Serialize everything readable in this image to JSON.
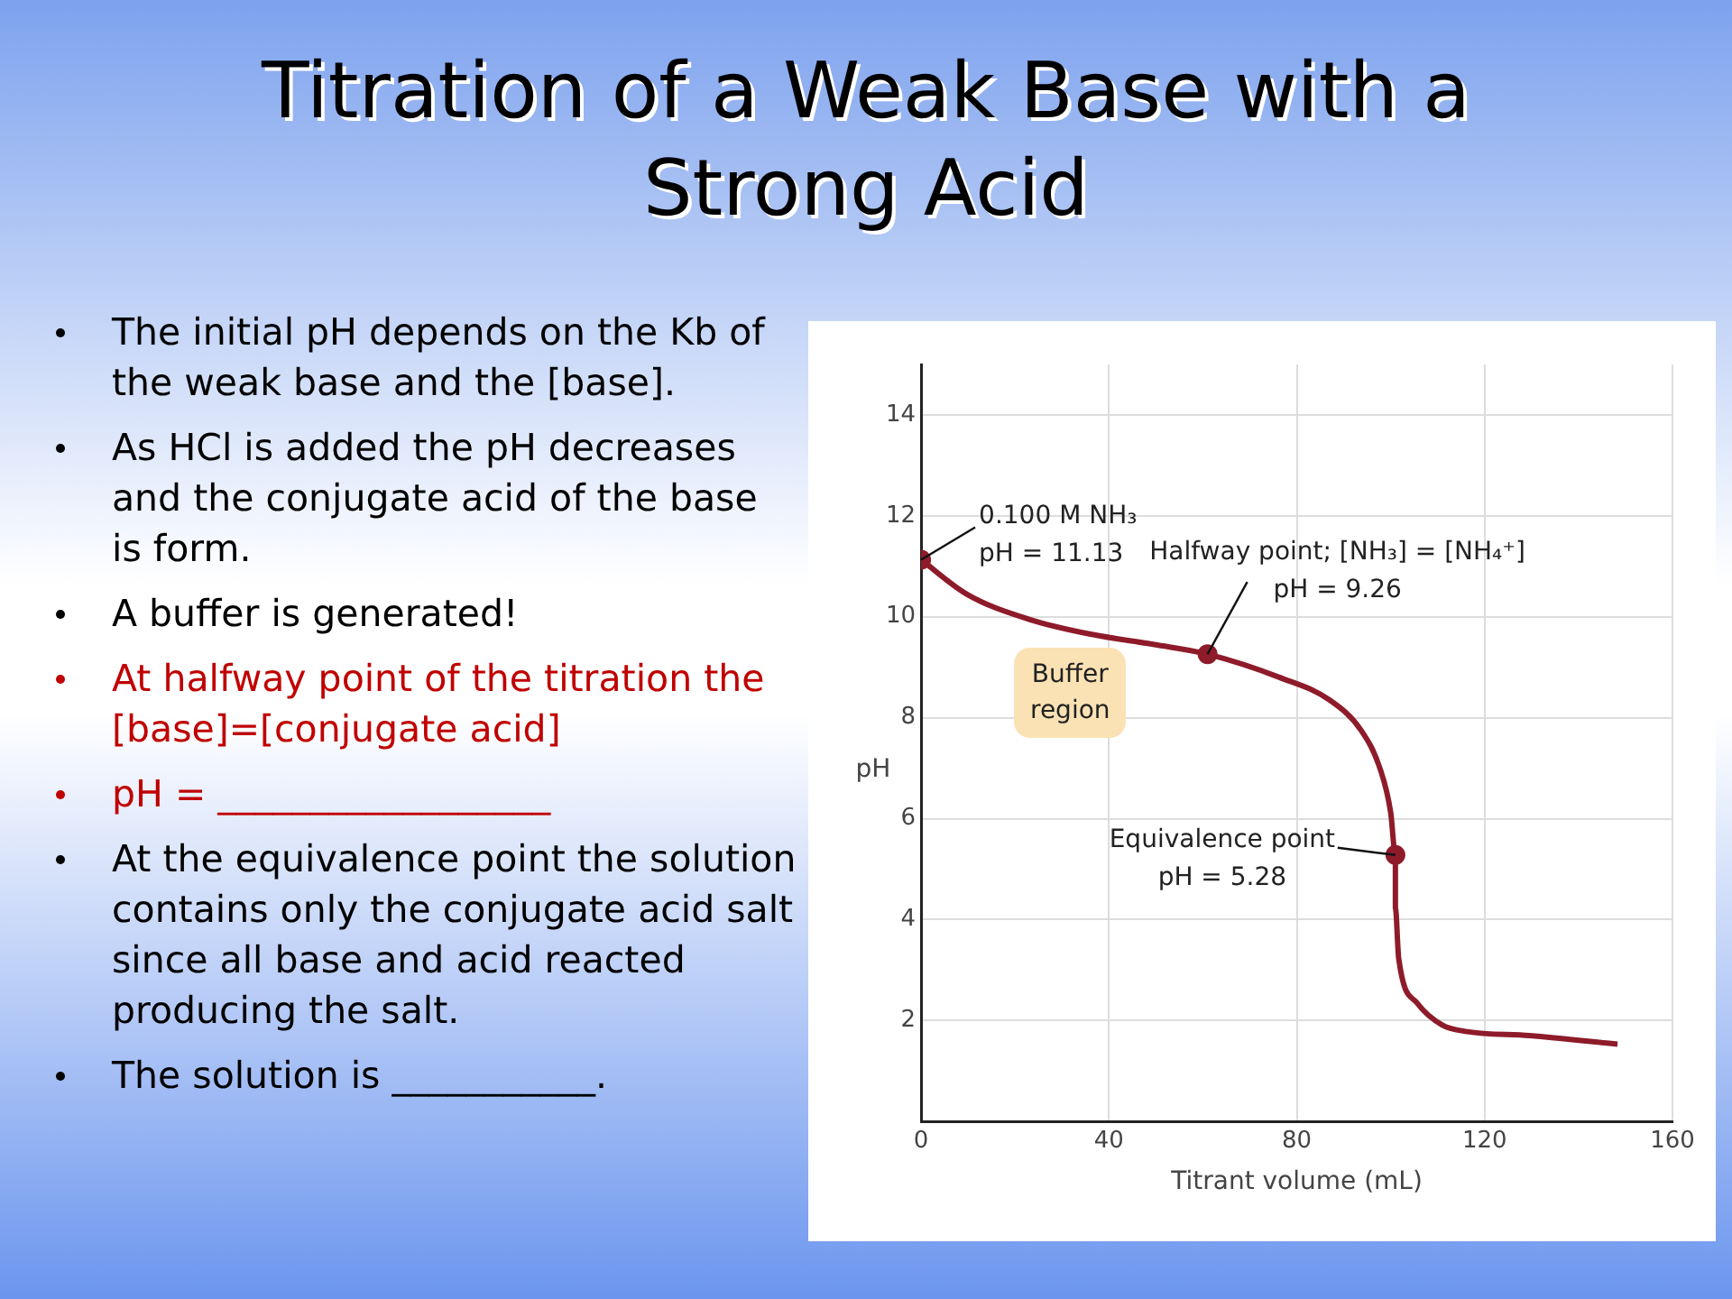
{
  "chart_data": {
    "type": "line",
    "title": "Titration of a Weak Base with a Strong Acid",
    "xlabel": "Titrant volume (mL)",
    "ylabel": "pH",
    "series": [
      {
        "color": "#8e1b2a",
        "marker": "none",
        "x": [
          0,
          9.7,
          23,
          36.4,
          49.7,
          61,
          76.3,
          87,
          93.7,
          97.7,
          100,
          101,
          101,
          101.7,
          105.6,
          111,
          116.3,
          129.6,
          148.3
        ],
        "values": [
          11.13,
          10.45,
          9.95,
          9.65,
          9.45,
          9.26,
          8.8,
          8.35,
          7.75,
          7.0,
          6.12,
          5.28,
          4.23,
          3.23,
          2.35,
          1.91,
          1.78,
          1.7,
          1.53
        ]
      },
      {
        "type": "scatter",
        "color": "#8e1b2a",
        "marker": "circle",
        "x": [
          0,
          61,
          101
        ],
        "values": [
          11.13,
          9.26,
          5.28
        ]
      }
    ],
    "xlim": [
      0,
      160
    ],
    "xticks": [
      0,
      40,
      80,
      120,
      160
    ],
    "ylim": [
      0,
      15
    ],
    "yticks": [
      2,
      4,
      6,
      8,
      10,
      12,
      14
    ],
    "grid": true,
    "legend": false,
    "annotations": [
      "The initial pH depends on the Kb of the weak base and the [base].",
      "As HCl is added the pH decreases and the conjugate acid of the base is form.",
      "A buffer is generated!",
      "At halfway point of the titration the [base]=[conjugate acid]",
      "pH = __________________",
      "At the equivalence point the solution contains only the conjugate acid salt since all base and acid reacted producing the salt.",
      "The solution is ___________.",
      {
        "text": "0.100 M NH₃\npH = 11.13",
        "x": 0,
        "y": 11.13
      },
      {
        "text": "Halfway point; [NH₃] = [NH₄⁺]\npH = 9.26",
        "x": 61,
        "y": 9.26
      },
      {
        "text": "Equivalence point\npH = 5.28",
        "x": 101,
        "y": 5.28
      },
      "Buffer\nregion"
    ]
  }
}
